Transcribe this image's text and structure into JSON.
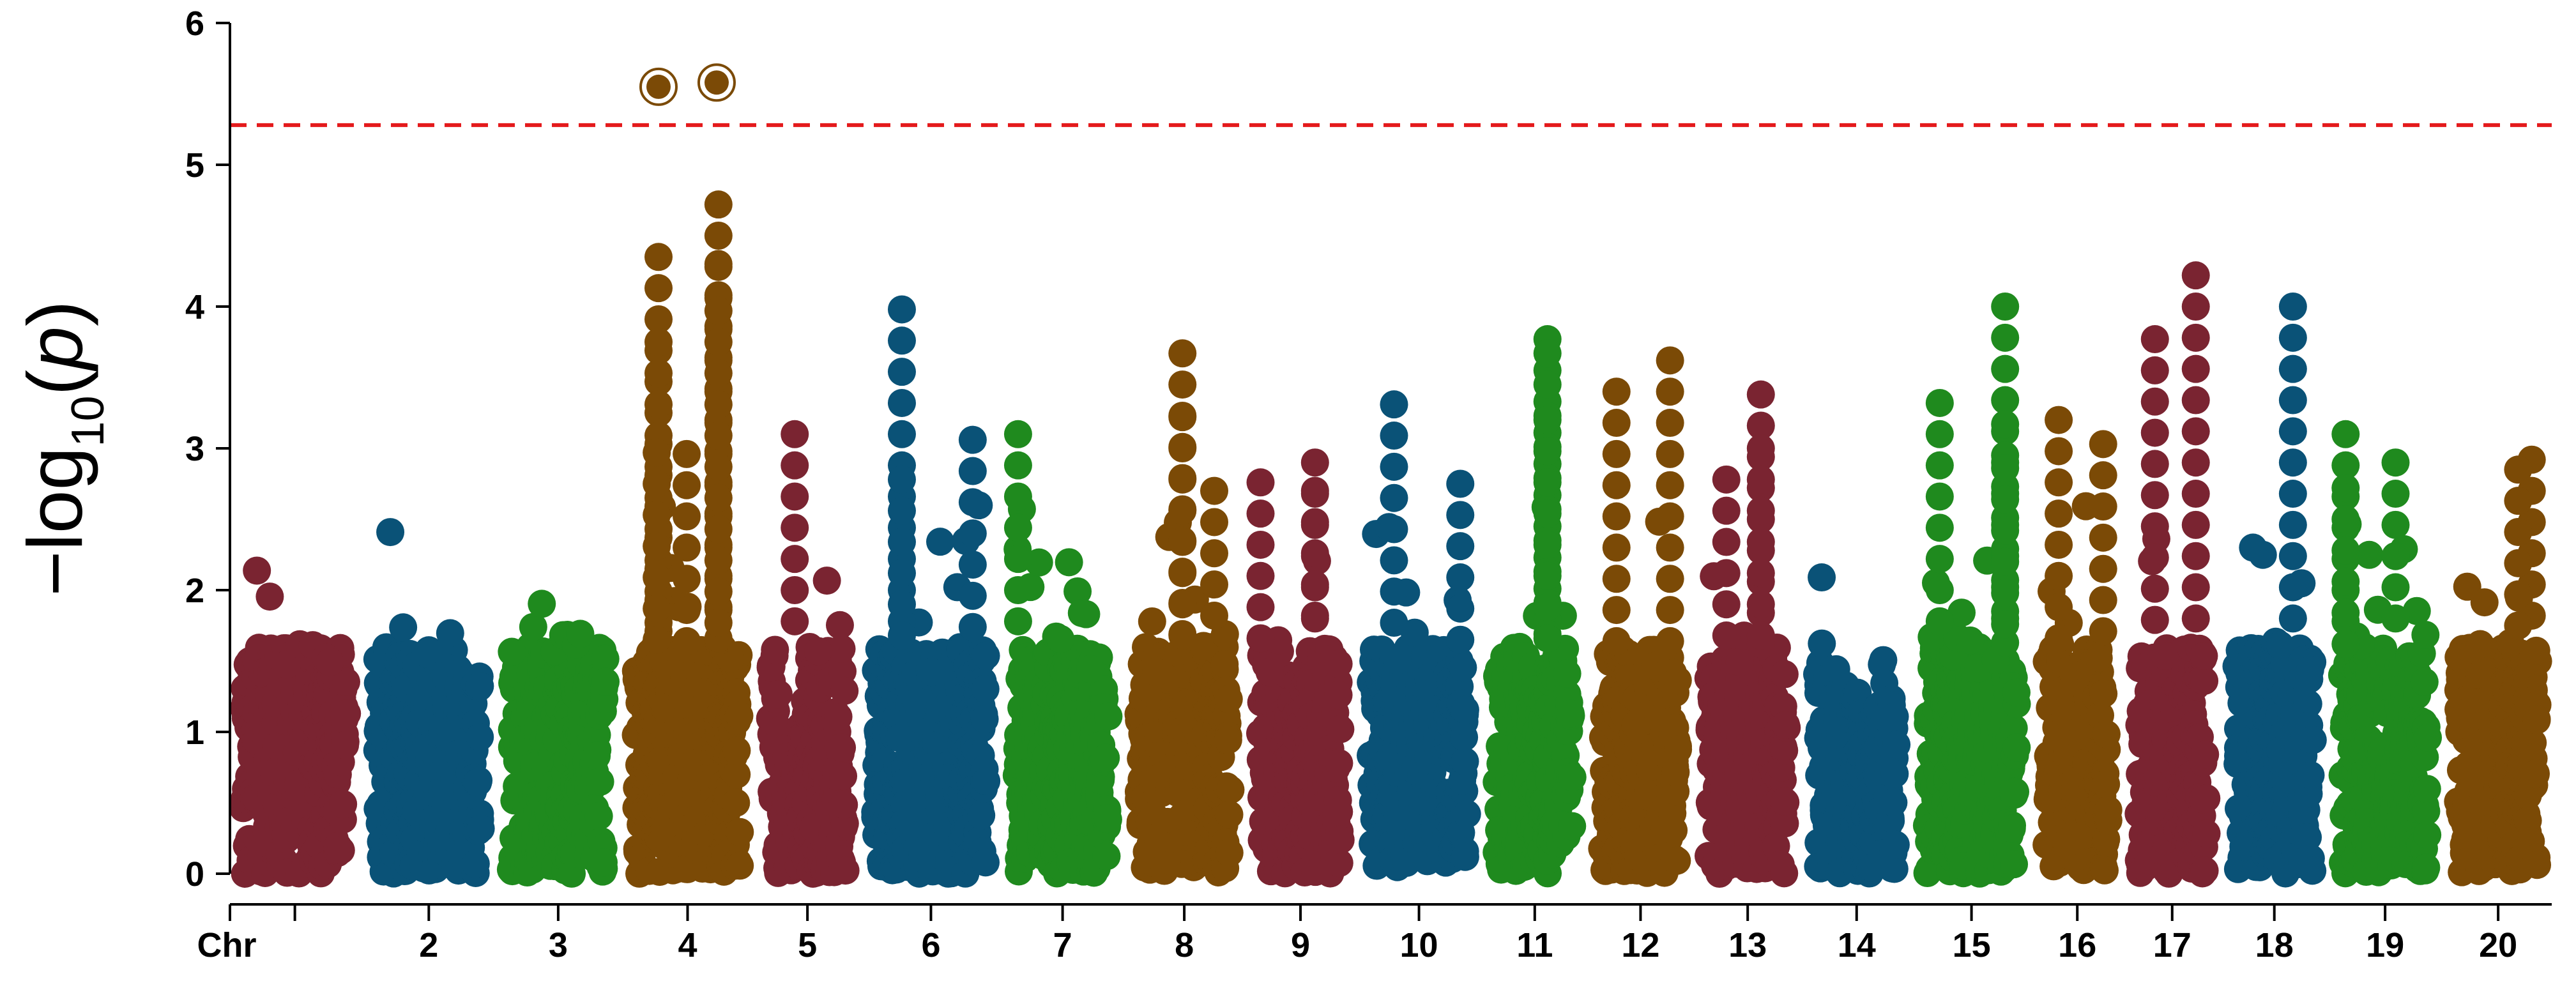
{
  "chart_data": {
    "type": "scatter",
    "subtype": "manhattan",
    "title": "",
    "xlabel": "Chr",
    "ylabel": "−log10(p)",
    "ylabel_parts": {
      "prefix": "−log",
      "subscript": "10",
      "open": "(",
      "var": "p",
      "close": ")"
    },
    "ylim": [
      0,
      6
    ],
    "yticks": [
      0,
      1,
      2,
      3,
      4,
      5,
      6
    ],
    "threshold": 5.28,
    "threshold_color": "#e41a1c",
    "grid": false,
    "legend": "none",
    "palette": [
      "#7a2431",
      "#0a5277",
      "#1f8a1e",
      "#7b4a06"
    ],
    "chromosomes": [
      {
        "chr": "1",
        "label": "",
        "color": "#7a2431",
        "start": 0,
        "end": 1.43,
        "profile": [
          1.9,
          2.3,
          2.1,
          1.7,
          1.8,
          2.2,
          1.6,
          1.7
        ]
      },
      {
        "chr": "2",
        "label": "2",
        "color": "#0a5277",
        "start": 1.47,
        "end": 2.91,
        "profile": [
          2.2,
          2.8,
          2.0,
          1.8,
          1.6,
          1.8,
          1.4,
          1.5
        ]
      },
      {
        "chr": "3",
        "label": "3",
        "color": "#1f8a1e",
        "start": 2.95,
        "end": 4.28,
        "profile": [
          1.9,
          2.5,
          2.0,
          1.7,
          1.8,
          2.1,
          1.7,
          1.6
        ]
      },
      {
        "chr": "4",
        "label": "4",
        "color": "#7b4a06",
        "start": 4.32,
        "end": 5.76,
        "profile": [
          2.5,
          4.35,
          2.6,
          2.9,
          2.3,
          4.72,
          2.4,
          1.9
        ]
      },
      {
        "chr": "5",
        "label": "5",
        "color": "#7a2431",
        "start": 5.8,
        "end": 6.92,
        "profile": [
          1.9,
          1.2,
          0.6,
          1.3,
          3.1,
          2.5,
          1.9,
          1.7
        ]
      },
      {
        "chr": "6",
        "label": "6",
        "color": "#0a5277",
        "start": 6.96,
        "end": 8.48,
        "profile": [
          1.6,
          2.0,
          2.8,
          2.2,
          2.4,
          3.0,
          2.7,
          2.6
        ]
      },
      {
        "chr": "7",
        "label": "7",
        "color": "#1f8a1e",
        "start": 8.52,
        "end": 9.82,
        "profile": [
          3.1,
          2.4,
          2.2,
          1.9,
          2.3,
          2.1,
          1.6,
          1.4
        ]
      },
      {
        "chr": "8",
        "label": "8",
        "color": "#7b4a06",
        "start": 9.86,
        "end": 11.16,
        "profile": [
          1.6,
          2.0,
          3.68,
          2.6,
          2.2,
          2.1,
          2.7,
          2.3
        ]
      },
      {
        "chr": "9",
        "label": "9",
        "color": "#7a2431",
        "start": 11.2,
        "end": 12.38,
        "profile": [
          2.8,
          1.9,
          1.5,
          1.4,
          1.6,
          2.9,
          2.1,
          2.0
        ]
      },
      {
        "chr": "10",
        "label": "10",
        "color": "#0a5277",
        "start": 12.42,
        "end": 13.77,
        "profile": [
          2.3,
          3.3,
          2.0,
          2.1,
          1.9,
          2.2,
          2.75,
          2.0
        ]
      },
      {
        "chr": "11",
        "label": "11",
        "color": "#1f8a1e",
        "start": 13.81,
        "end": 14.93,
        "profile": [
          2.1,
          2.2,
          2.5,
          3.77,
          2.8,
          2.4,
          2.0,
          1.8
        ]
      },
      {
        "chr": "12",
        "label": "12",
        "color": "#7b4a06",
        "start": 14.97,
        "end": 16.1,
        "profile": [
          2.3,
          3.4,
          1.9,
          1.3,
          1.1,
          3.62,
          1.8,
          1.5
        ]
      },
      {
        "chr": "13",
        "label": "13",
        "color": "#7a2431",
        "start": 16.14,
        "end": 17.29,
        "profile": [
          2.3,
          2.0,
          2.8,
          1.8,
          3.37,
          2.4,
          1.8,
          1.6
        ]
      },
      {
        "chr": "14",
        "label": "14",
        "color": "#0a5277",
        "start": 17.33,
        "end": 18.5,
        "profile": [
          2.1,
          1.6,
          1.4,
          1.5,
          1.2,
          1.1,
          1.6,
          1.2
        ]
      },
      {
        "chr": "15",
        "label": "15",
        "color": "#1f8a1e",
        "start": 18.54,
        "end": 19.82,
        "profile": [
          1.8,
          3.32,
          2.6,
          1.7,
          1.8,
          4.0,
          3.2,
          2.1
        ]
      },
      {
        "chr": "16",
        "label": "16",
        "color": "#7b4a06",
        "start": 19.86,
        "end": 20.83,
        "profile": [
          2.3,
          3.2,
          2.0,
          1.6,
          2.2,
          3.02,
          1.7,
          1.5
        ]
      },
      {
        "chr": "17",
        "label": "17",
        "color": "#7a2431",
        "start": 20.87,
        "end": 21.91,
        "profile": [
          2.7,
          3.77,
          2.4,
          2.0,
          4.22,
          2.4,
          1.8,
          1.7
        ]
      },
      {
        "chr": "18",
        "label": "18",
        "color": "#0a5277",
        "start": 21.95,
        "end": 23.08,
        "profile": [
          2.2,
          2.1,
          2.3,
          4.0,
          1.9,
          1.6,
          2.1,
          1.8
        ]
      },
      {
        "chr": "19",
        "label": "19",
        "color": "#1f8a1e",
        "start": 23.12,
        "end": 24.35,
        "profile": [
          3.1,
          2.7,
          2.3,
          2.9,
          2.4,
          2.5,
          2.1,
          1.8
        ]
      },
      {
        "chr": "20",
        "label": "20",
        "color": "#7b4a06",
        "start": 24.39,
        "end": 25.57,
        "profile": [
          2.4,
          2.6,
          2.0,
          2.2,
          2.8,
          2.9,
          2.5,
          1.9
        ]
      }
    ],
    "highlighted": [
      {
        "chr": "4",
        "x": 4.72,
        "y": 5.55
      },
      {
        "chr": "4",
        "x": 5.36,
        "y": 5.58
      }
    ],
    "notable_points": [
      {
        "chr": "4",
        "x": 4.72,
        "y": 4.35
      },
      {
        "chr": "4",
        "x": 4.72,
        "y": 3.75
      },
      {
        "chr": "4",
        "x": 4.7,
        "y": 2.97
      },
      {
        "chr": "4",
        "x": 5.03,
        "y": 2.96
      },
      {
        "chr": "4",
        "x": 5.38,
        "y": 4.72
      },
      {
        "chr": "4",
        "x": 5.38,
        "y": 4.3
      },
      {
        "chr": "4",
        "x": 5.38,
        "y": 3.97
      },
      {
        "chr": "5",
        "x": 6.22,
        "y": 3.1
      },
      {
        "chr": "6",
        "x": 7.4,
        "y": 3.98
      },
      {
        "chr": "6",
        "x": 7.4,
        "y": 2.78
      },
      {
        "chr": "6",
        "x": 8.18,
        "y": 3.06
      },
      {
        "chr": "7",
        "x": 8.68,
        "y": 3.1
      },
      {
        "chr": "8",
        "x": 10.49,
        "y": 3.67
      },
      {
        "chr": "8",
        "x": 10.49,
        "y": 3.22
      },
      {
        "chr": "8",
        "x": 10.84,
        "y": 2.7
      },
      {
        "chr": "9",
        "x": 11.35,
        "y": 2.76
      },
      {
        "chr": "9",
        "x": 11.95,
        "y": 2.9
      },
      {
        "chr": "9",
        "x": 11.95,
        "y": 2.7
      },
      {
        "chr": "10",
        "x": 12.82,
        "y": 3.31
      },
      {
        "chr": "10",
        "x": 13.55,
        "y": 2.75
      },
      {
        "chr": "11",
        "x": 14.51,
        "y": 3.77
      },
      {
        "chr": "11",
        "x": 14.51,
        "y": 3.67
      },
      {
        "chr": "11",
        "x": 14.51,
        "y": 3.2
      },
      {
        "chr": "12",
        "x": 15.27,
        "y": 3.4
      },
      {
        "chr": "12",
        "x": 15.86,
        "y": 3.62
      },
      {
        "chr": "13",
        "x": 16.48,
        "y": 2.78
      },
      {
        "chr": "13",
        "x": 16.86,
        "y": 3.38
      },
      {
        "chr": "13",
        "x": 16.86,
        "y": 3.0
      },
      {
        "chr": "14",
        "x": 17.53,
        "y": 2.09
      },
      {
        "chr": "15",
        "x": 18.83,
        "y": 3.32
      },
      {
        "chr": "15",
        "x": 19.55,
        "y": 4.0
      },
      {
        "chr": "15",
        "x": 19.55,
        "y": 3.17
      },
      {
        "chr": "15",
        "x": 19.55,
        "y": 2.86
      },
      {
        "chr": "16",
        "x": 20.14,
        "y": 3.2
      },
      {
        "chr": "16",
        "x": 20.63,
        "y": 3.03
      },
      {
        "chr": "17",
        "x": 21.2,
        "y": 3.77
      },
      {
        "chr": "17",
        "x": 21.65,
        "y": 4.22
      },
      {
        "chr": "18",
        "x": 22.72,
        "y": 4.0
      },
      {
        "chr": "18",
        "x": 22.28,
        "y": 2.3
      },
      {
        "chr": "19",
        "x": 23.3,
        "y": 3.1
      },
      {
        "chr": "19",
        "x": 23.3,
        "y": 2.72
      },
      {
        "chr": "19",
        "x": 23.85,
        "y": 2.9
      },
      {
        "chr": "20",
        "x": 25.35,
        "y": 2.92
      },
      {
        "chr": "20",
        "x": 25.2,
        "y": 2.85
      }
    ]
  }
}
